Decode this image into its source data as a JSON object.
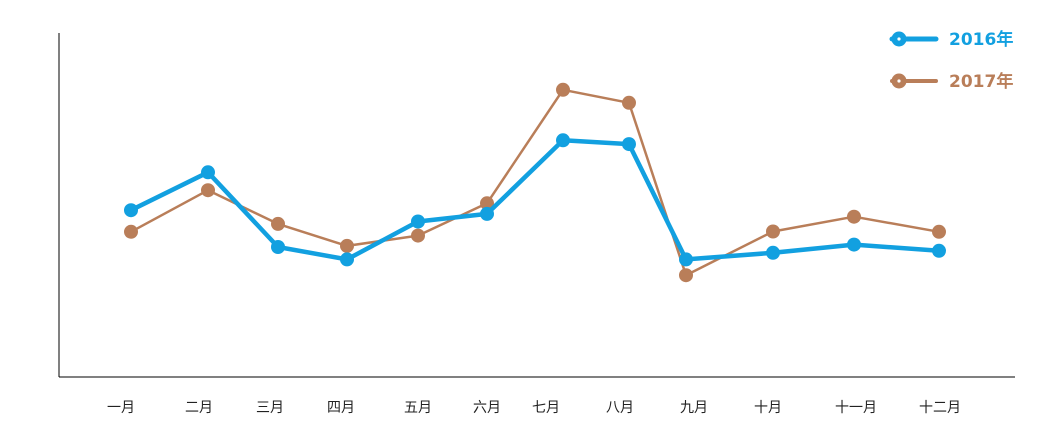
{
  "chart_data": {
    "type": "line",
    "title": "",
    "xlabel": "",
    "ylabel": "",
    "ylim": [
      0,
      100
    ],
    "grid": false,
    "legend": "top-right",
    "categories": [
      "一月",
      "二月",
      "三月",
      "四月",
      "五月",
      "六月",
      "七月",
      "八月",
      "九月",
      "十月",
      "十一月",
      "十二月"
    ],
    "series": [
      {
        "name": "2016年",
        "color": "#12a0e0",
        "values": [
          48.5,
          59.5,
          37.8,
          34.2,
          45.2,
          47.4,
          68.8,
          67.7,
          34.2,
          36.1,
          38.5,
          36.7
        ]
      },
      {
        "name": "2017年",
        "color": "#b97e59",
        "values": [
          42.2,
          54.3,
          44.5,
          38.1,
          41.1,
          50.5,
          83.5,
          79.7,
          29.6,
          42.3,
          46.6,
          42.2
        ]
      }
    ]
  }
}
